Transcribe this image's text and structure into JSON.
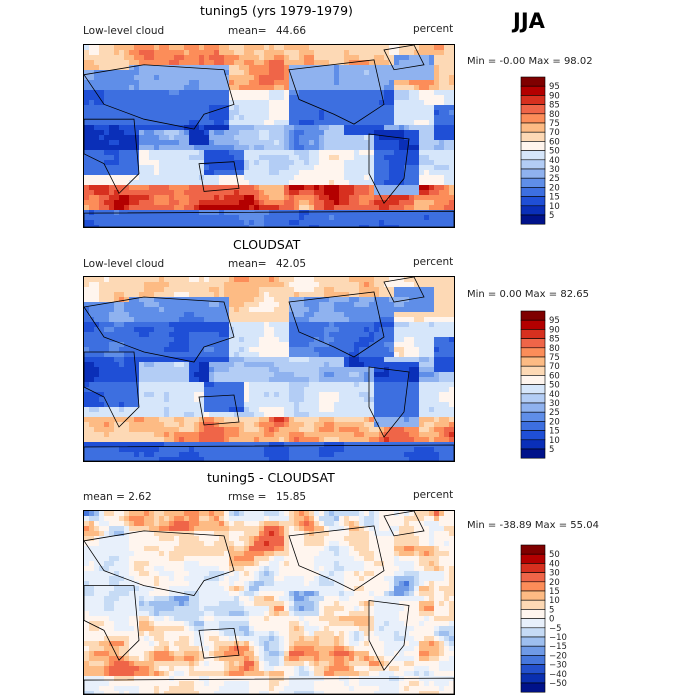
{
  "season": "JJA",
  "panels": [
    {
      "title": "tuning5 (yrs 1979-1979)",
      "left_label": "Low-level cloud",
      "stat_label": "mean=",
      "stat_value": "44.66",
      "unit": "percent",
      "minmax": "Min =  -0.00 Max =  98.02",
      "colorbar": {
        "levels": [
          "95",
          "90",
          "85",
          "80",
          "75",
          "70",
          "60",
          "50",
          "40",
          "30",
          "25",
          "20",
          "15",
          "10",
          "5"
        ],
        "colors": [
          "#7f0000",
          "#b30000",
          "#d7301f",
          "#ef6548",
          "#fc8d59",
          "#fdbb84",
          "#fdd9b5",
          "#fff5ee",
          "#d6e6fa",
          "#b3cdf5",
          "#8fb2ef",
          "#5f8ee8",
          "#3d6fe0",
          "#1f4fd6",
          "#0a2fb8",
          "#00128a"
        ]
      }
    },
    {
      "title": "CLOUDSAT",
      "left_label": "Low-level cloud",
      "stat_label": "mean=",
      "stat_value": "42.05",
      "unit": "percent",
      "minmax": "Min =   0.00 Max =  82.65",
      "colorbar": {
        "levels": [
          "95",
          "90",
          "85",
          "80",
          "75",
          "70",
          "60",
          "50",
          "40",
          "30",
          "25",
          "20",
          "15",
          "10",
          "5"
        ],
        "colors": [
          "#7f0000",
          "#b30000",
          "#d7301f",
          "#ef6548",
          "#fc8d59",
          "#fdbb84",
          "#fdd9b5",
          "#fff5ee",
          "#d6e6fa",
          "#b3cdf5",
          "#8fb2ef",
          "#5f8ee8",
          "#3d6fe0",
          "#1f4fd6",
          "#0a2fb8",
          "#00128a"
        ]
      }
    },
    {
      "title": "tuning5 - CLOUDSAT",
      "left_label": "mean =   2.62",
      "stat_label": "rmse =",
      "stat_value": "15.85",
      "unit": "percent",
      "minmax": "Min = -38.89 Max =  55.04",
      "colorbar": {
        "levels": [
          "50",
          "40",
          "30",
          "20",
          "15",
          "10",
          "5",
          "0",
          "−5",
          "−10",
          "−15",
          "−20",
          "−30",
          "−40",
          "−50"
        ],
        "colors": [
          "#7f0000",
          "#b30000",
          "#d7301f",
          "#ef6548",
          "#fc8d59",
          "#fdbb84",
          "#fdd9b5",
          "#fff5ee",
          "#e8f0fb",
          "#c6dbf5",
          "#9ebfef",
          "#6f9ae6",
          "#4677dc",
          "#2350cc",
          "#0a2fb0",
          "#00128a"
        ]
      }
    }
  ],
  "chart_data": [
    {
      "type": "heatmap",
      "title": "tuning5 (yrs 1979-1979)",
      "variable": "Low-level cloud",
      "units": "percent",
      "mean": 44.66,
      "min": -0.0,
      "max": 98.02,
      "contour_levels": [
        5,
        10,
        15,
        20,
        25,
        30,
        40,
        50,
        60,
        70,
        75,
        80,
        85,
        90,
        95
      ]
    },
    {
      "type": "heatmap",
      "title": "CLOUDSAT",
      "variable": "Low-level cloud",
      "units": "percent",
      "mean": 42.05,
      "min": 0.0,
      "max": 82.65,
      "contour_levels": [
        5,
        10,
        15,
        20,
        25,
        30,
        40,
        50,
        60,
        70,
        75,
        80,
        85,
        90,
        95
      ]
    },
    {
      "type": "heatmap",
      "title": "tuning5 - CLOUDSAT",
      "units": "percent",
      "mean": 2.62,
      "rmse": 15.85,
      "min": -38.89,
      "max": 55.04,
      "contour_levels": [
        -50,
        -40,
        -30,
        -20,
        -15,
        -10,
        -5,
        0,
        5,
        10,
        15,
        20,
        30,
        40,
        50
      ]
    }
  ]
}
